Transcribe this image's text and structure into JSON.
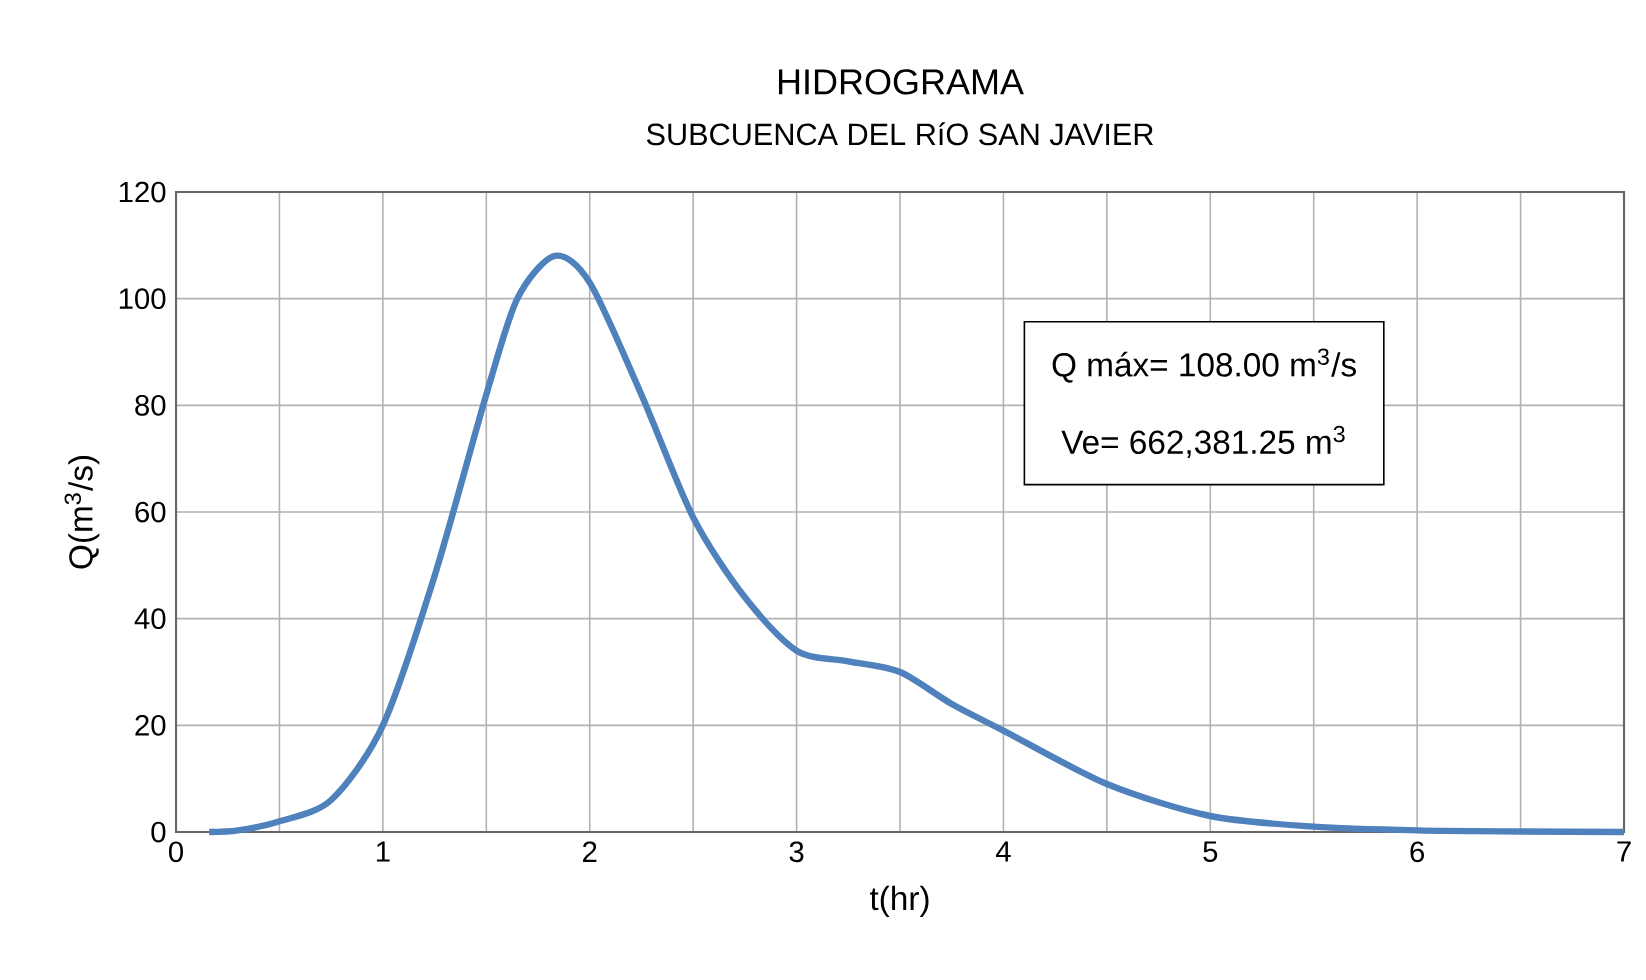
{
  "chart_data": {
    "type": "line",
    "title": "HIDROGRAMA",
    "subtitle": "SUBCUENCA DEL RíO SAN JAVIER",
    "xlabel": "t(hr)",
    "ylabel": "Q(m$^{3}$/s)",
    "annotations": [
      "Q máx= 108.00 m$^{3}$/s",
      "Ve= 662,381.25 m$^{3}$"
    ],
    "x": [
      0.16,
      0.3,
      0.5,
      0.75,
      1.0,
      1.25,
      1.5,
      1.65,
      1.83,
      2.0,
      2.25,
      2.5,
      2.75,
      3.0,
      3.25,
      3.5,
      3.75,
      4.0,
      4.5,
      5.0,
      5.5,
      6.0,
      6.5,
      7.0
    ],
    "values": [
      0,
      0.3,
      2,
      6,
      20,
      48,
      82,
      100,
      108,
      103,
      82,
      59,
      44,
      34,
      32,
      30,
      24,
      19,
      9,
      3,
      1,
      0.3,
      0.1,
      0
    ],
    "color": "#4f81bd",
    "line_style": "solid",
    "marker": "none",
    "xlim": [
      0,
      7
    ],
    "xticks": [
      0,
      {
        "value": 0.5,
        "label": null
      },
      1,
      {
        "value": 1.5,
        "label": null
      },
      2,
      {
        "value": 2.5,
        "label": null
      },
      3,
      {
        "value": 3.5,
        "label": null
      },
      4,
      {
        "value": 4.5,
        "label": null
      },
      5,
      {
        "value": 5.5,
        "label": null
      },
      6,
      {
        "value": 6.5,
        "label": null
      },
      7
    ],
    "ylim": [
      0,
      120
    ],
    "yticks": [
      0,
      20,
      40,
      60,
      80,
      100,
      120
    ],
    "grid": true
  }
}
